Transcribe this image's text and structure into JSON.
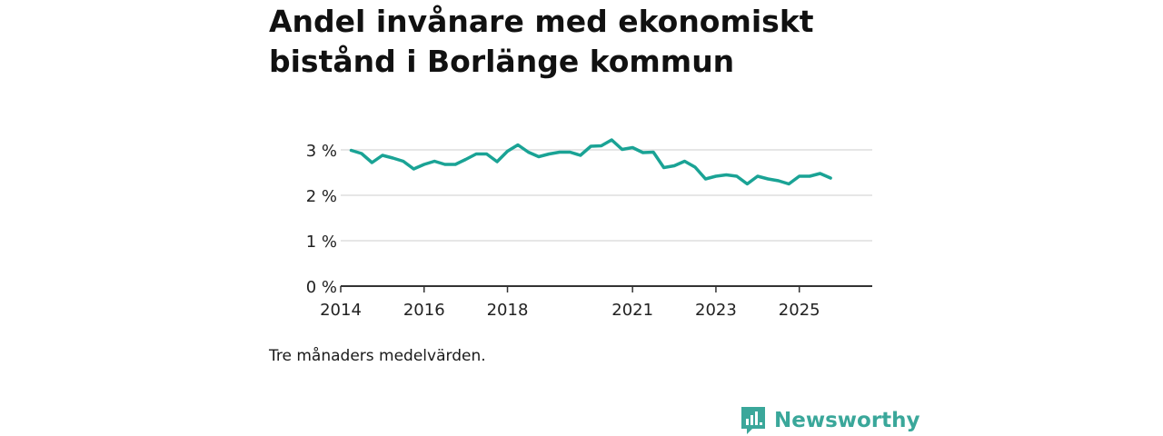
{
  "title": "Andel invånare med ekonomiskt bistånd i Borlänge kommun",
  "note": "Tre månaders medelvärden.",
  "brand": {
    "name": "Newsworthy",
    "icon": "bar-chart-logo-icon",
    "color": "#3aa79a"
  },
  "colors": {
    "line": "#1aa395",
    "grid": "#dddddd",
    "axis": "#333333"
  },
  "chart_data": {
    "type": "line",
    "title": "Andel invånare med ekonomiskt bistånd i Borlänge kommun",
    "xlabel": "",
    "ylabel": "",
    "grid": true,
    "xlim": [
      2014.0,
      2026.75
    ],
    "ylim": [
      0,
      3.3
    ],
    "x_ticks": [
      2014,
      2016,
      2018,
      2021,
      2023,
      2025
    ],
    "x_tick_labels": [
      "2014",
      "2016",
      "2018",
      "2021",
      "2023",
      "2025"
    ],
    "y_ticks": [
      0,
      1,
      2,
      3
    ],
    "y_tick_labels": [
      "0 %",
      "1 %",
      "2 %",
      "3 %"
    ],
    "series": [
      {
        "name": "Andel invånare med ekonomiskt bistånd",
        "x": [
          2014.25,
          2014.5,
          2014.75,
          2015.0,
          2015.25,
          2015.5,
          2015.75,
          2016.0,
          2016.25,
          2016.5,
          2016.75,
          2017.0,
          2017.25,
          2017.5,
          2017.75,
          2018.0,
          2018.25,
          2018.5,
          2018.75,
          2019.0,
          2019.25,
          2019.5,
          2019.75,
          2020.0,
          2020.25,
          2020.5,
          2020.75,
          2021.0,
          2021.25,
          2021.5,
          2021.75,
          2022.0,
          2022.25,
          2022.5,
          2022.75,
          2023.0,
          2023.25,
          2023.5,
          2023.75,
          2024.0,
          2024.25,
          2024.5,
          2024.75,
          2025.0,
          2025.25,
          2025.5,
          2025.75
        ],
        "values": [
          2.99,
          2.92,
          2.72,
          2.88,
          2.82,
          2.75,
          2.58,
          2.68,
          2.75,
          2.68,
          2.68,
          2.79,
          2.91,
          2.91,
          2.74,
          2.97,
          3.11,
          2.95,
          2.85,
          2.91,
          2.95,
          2.95,
          2.88,
          3.08,
          3.09,
          3.22,
          3.01,
          3.05,
          2.94,
          2.95,
          2.61,
          2.65,
          2.75,
          2.62,
          2.36,
          2.42,
          2.45,
          2.42,
          2.25,
          2.42,
          2.36,
          2.32,
          2.25,
          2.42,
          2.42,
          2.48,
          2.38
        ]
      }
    ]
  }
}
